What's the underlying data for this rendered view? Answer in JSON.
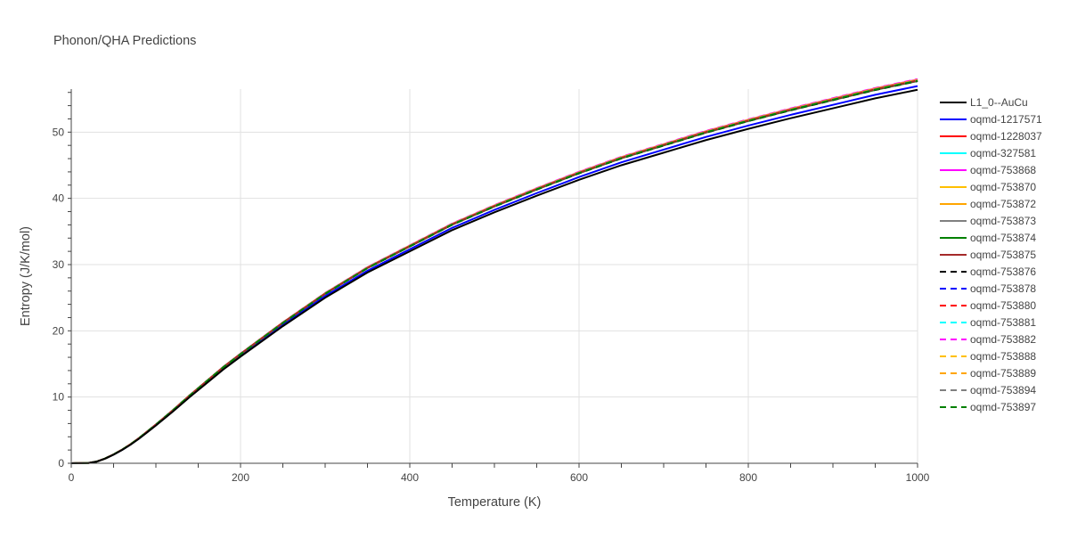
{
  "chart_data": {
    "type": "line",
    "title": "Phonon/QHA Predictions",
    "xlabel": "Temperature (K)",
    "ylabel": "Entropy (J/K/mol)",
    "xlim": [
      0,
      1000
    ],
    "ylim": [
      0,
      56.5
    ],
    "xticks": [
      0,
      200,
      400,
      600,
      800,
      1000
    ],
    "yticks": [
      0,
      10,
      20,
      30,
      40,
      50
    ],
    "grid": true,
    "legend_position": "right",
    "x": [
      0,
      20,
      30,
      40,
      50,
      60,
      70,
      80,
      90,
      100,
      120,
      140,
      160,
      180,
      200,
      250,
      300,
      350,
      400,
      450,
      500,
      550,
      600,
      650,
      700,
      750,
      800,
      850,
      900,
      950,
      1000
    ],
    "series": [
      {
        "name": "L1_0--AuCu",
        "color": "#000000",
        "dash": false,
        "values": [
          0,
          0.03,
          0.25,
          0.7,
          1.3,
          2.0,
          2.8,
          3.7,
          4.7,
          5.7,
          7.8,
          10.0,
          12.1,
          14.2,
          16.1,
          20.7,
          25.0,
          28.8,
          32.0,
          35.2,
          37.9,
          40.4,
          42.8,
          45.0,
          46.9,
          48.8,
          50.5,
          52.1,
          53.6,
          55.1,
          56.4
        ]
      }
    ],
    "band": [
      {
        "name": "oqmd-1217571",
        "color": "#0000ff",
        "dash": false,
        "offset": 0.55
      },
      {
        "name": "oqmd-1228037",
        "color": "#ff0000",
        "dash": false,
        "offset": 1.35
      },
      {
        "name": "oqmd-327581",
        "color": "#00ffff",
        "dash": false,
        "offset": 1.4
      },
      {
        "name": "oqmd-753868",
        "color": "#ff00ff",
        "dash": false,
        "offset": 1.55
      },
      {
        "name": "oqmd-753870",
        "color": "#ffbf00",
        "dash": false,
        "offset": 1.5
      },
      {
        "name": "oqmd-753872",
        "color": "#ffa500",
        "dash": false,
        "offset": 1.45
      },
      {
        "name": "oqmd-753873",
        "color": "#808080",
        "dash": false,
        "offset": 1.3
      },
      {
        "name": "oqmd-753874",
        "color": "#008000",
        "dash": false,
        "offset": 1.35
      },
      {
        "name": "oqmd-753875",
        "color": "#a52a2a",
        "dash": false,
        "offset": 1.4
      },
      {
        "name": "oqmd-753876",
        "color": "#000000",
        "dash": true,
        "offset": 1.3
      },
      {
        "name": "oqmd-753878",
        "color": "#0000ff",
        "dash": true,
        "offset": 1.45
      },
      {
        "name": "oqmd-753880",
        "color": "#ff0000",
        "dash": true,
        "offset": 1.5
      },
      {
        "name": "oqmd-753881",
        "color": "#00ffff",
        "dash": true,
        "offset": 1.55
      },
      {
        "name": "oqmd-753882",
        "color": "#ff00ff",
        "dash": true,
        "offset": 1.6
      },
      {
        "name": "oqmd-753888",
        "color": "#ffbf00",
        "dash": true,
        "offset": 1.45
      },
      {
        "name": "oqmd-753889",
        "color": "#ffa500",
        "dash": true,
        "offset": 1.5
      },
      {
        "name": "oqmd-753894",
        "color": "#808080",
        "dash": true,
        "offset": 1.4
      },
      {
        "name": "oqmd-753897",
        "color": "#008000",
        "dash": true,
        "offset": 1.35
      }
    ]
  }
}
